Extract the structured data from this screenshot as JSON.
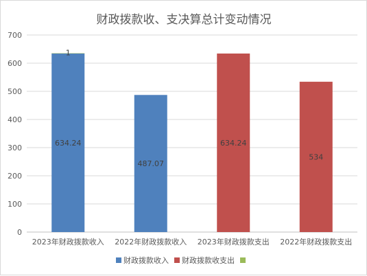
{
  "chart_data": {
    "type": "bar",
    "title": "财政拨款收、支决算总计变动情况",
    "categories": [
      "2023年财政拨款收入",
      "2022年财政拨款收入",
      "2023年财政拨款支出",
      "2022年财政拨款支出"
    ],
    "series": [
      {
        "name": "财政拨款收入",
        "color": "#4f81bd",
        "values": [
          634.24,
          487.07,
          null,
          null
        ],
        "labels": [
          "634.24",
          "487.07",
          "",
          ""
        ]
      },
      {
        "name": "财政拨款收支出",
        "color": "#c0504d",
        "values": [
          null,
          null,
          634.24,
          534
        ],
        "labels": [
          "",
          "",
          "634.24",
          "534"
        ]
      },
      {
        "name": "",
        "color": "#9bbb59",
        "values": [
          1,
          null,
          null,
          null
        ],
        "labels": [
          "1",
          "",
          "",
          ""
        ]
      }
    ],
    "stacked": true,
    "ylim": [
      0,
      700
    ],
    "yticks": [
      0,
      100,
      200,
      300,
      400,
      500,
      600,
      700
    ],
    "grid": true,
    "legend": "bottom"
  }
}
